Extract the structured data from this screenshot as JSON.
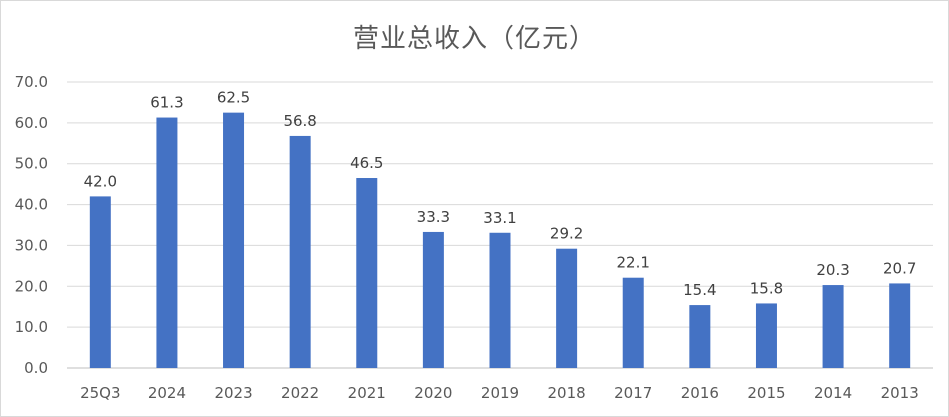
{
  "chart_data": {
    "type": "bar",
    "title": "营业总收入（亿元）",
    "xlabel": "",
    "ylabel": "",
    "categories": [
      "25Q3",
      "2024",
      "2023",
      "2022",
      "2021",
      "2020",
      "2019",
      "2018",
      "2017",
      "2016",
      "2015",
      "2014",
      "2013"
    ],
    "values": [
      42.0,
      61.3,
      62.5,
      56.8,
      46.5,
      33.3,
      33.1,
      29.2,
      22.1,
      15.4,
      15.8,
      20.3,
      20.7
    ],
    "value_labels": [
      "42.0",
      "61.3",
      "62.5",
      "56.8",
      "46.5",
      "33.3",
      "33.1",
      "29.2",
      "22.1",
      "15.4",
      "15.8",
      "20.3",
      "20.7"
    ],
    "ylim": [
      0,
      70
    ],
    "yticks": [
      "0.0",
      "10.0",
      "20.0",
      "30.0",
      "40.0",
      "50.0",
      "60.0",
      "70.0"
    ],
    "grid": true,
    "legend": "none",
    "colors": {
      "bar": "#4472c4",
      "grid": "#d9d9d9",
      "axis": "#bfbfbf"
    }
  }
}
